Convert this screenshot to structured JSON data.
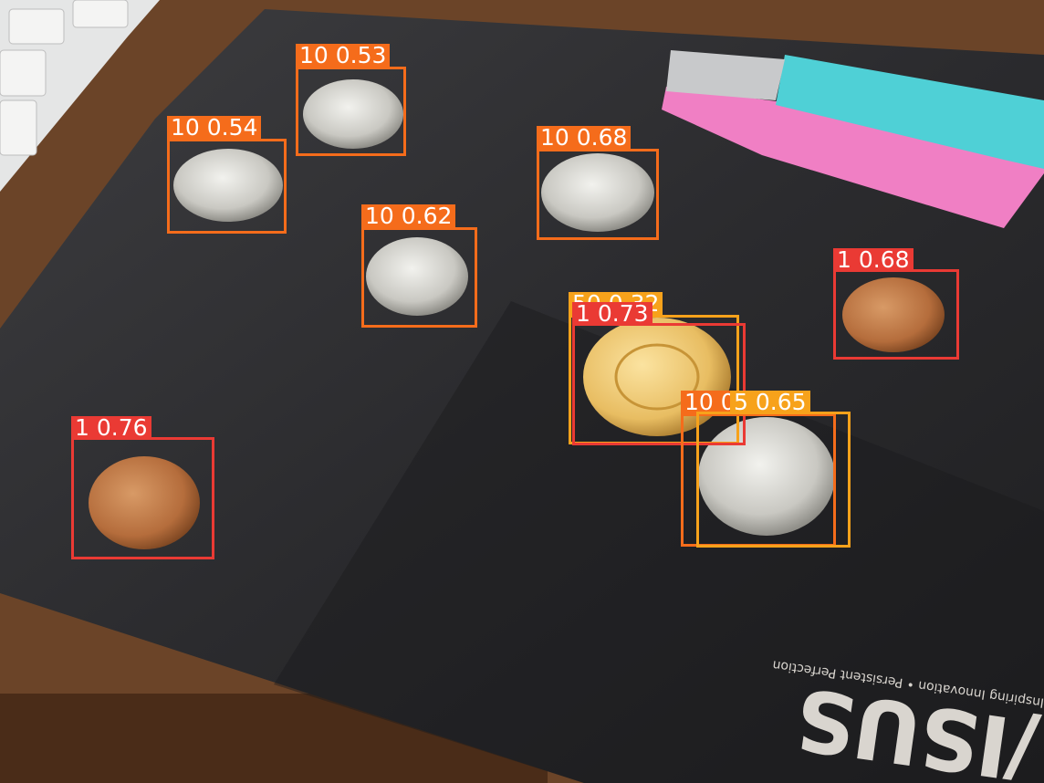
{
  "scene": {
    "description_free": true
  },
  "mat": {
    "brand": "/ISUS",
    "registered": "®",
    "slogan": "Inspiring Innovation • Persistent Perfection"
  },
  "detections": [
    {
      "id": "d1",
      "label": "10 0.53",
      "color": "#f56c1b"
    },
    {
      "id": "d2",
      "label": "10 0.54",
      "color": "#f56c1b"
    },
    {
      "id": "d3",
      "label": "10 0.62",
      "color": "#f56c1b"
    },
    {
      "id": "d4",
      "label": "10 0.68",
      "color": "#f56c1b"
    },
    {
      "id": "d5",
      "label": "1 0.68",
      "color": "#ea3a34"
    },
    {
      "id": "d6",
      "label": "50 0.32",
      "color": "#f7a21b"
    },
    {
      "id": "d7",
      "label": "1 0.73",
      "color": "#ea3a34"
    },
    {
      "id": "d8",
      "label": "10 0.36",
      "color": "#f56c1b"
    },
    {
      "id": "d9",
      "label": "5 0.65",
      "color": "#f7a21b"
    },
    {
      "id": "d10",
      "label": "1 0.76",
      "color": "#ea3a34"
    }
  ]
}
